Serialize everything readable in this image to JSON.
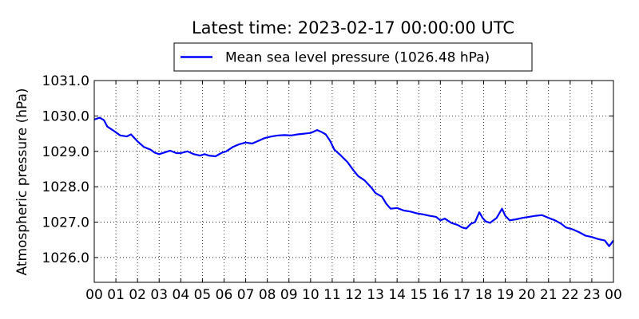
{
  "chart_data": {
    "type": "line",
    "title": "Latest time: 2023-02-17 00:00:00 UTC",
    "xlabel": "",
    "ylabel": "Atmospheric pressure (hPa)",
    "x_unit": "hour",
    "xlim": [
      0,
      24
    ],
    "ylim": [
      1025.3,
      1031.0
    ],
    "grid": true,
    "legend_position": "top-center",
    "x_tick_labels": [
      "00",
      "01",
      "02",
      "03",
      "04",
      "05",
      "06",
      "07",
      "08",
      "09",
      "10",
      "11",
      "12",
      "13",
      "14",
      "15",
      "16",
      "17",
      "18",
      "19",
      "20",
      "21",
      "22",
      "23",
      "00"
    ],
    "y_ticks": [
      1026.0,
      1027.0,
      1028.0,
      1029.0,
      1030.0,
      1031.0
    ],
    "y_tick_labels": [
      "1026.0",
      "1027.0",
      "1028.0",
      "1029.0",
      "1030.0",
      "1031.0"
    ],
    "series": [
      {
        "name": "Mean sea level pressure (1026.48 hPa)",
        "color": "#0000ff",
        "points": [
          [
            0.0,
            1029.9
          ],
          [
            0.25,
            1029.95
          ],
          [
            0.45,
            1029.88
          ],
          [
            0.6,
            1029.7
          ],
          [
            0.9,
            1029.58
          ],
          [
            1.2,
            1029.45
          ],
          [
            1.5,
            1029.42
          ],
          [
            1.7,
            1029.48
          ],
          [
            2.0,
            1029.28
          ],
          [
            2.3,
            1029.12
          ],
          [
            2.6,
            1029.05
          ],
          [
            2.8,
            1028.96
          ],
          [
            3.0,
            1028.92
          ],
          [
            3.3,
            1028.98
          ],
          [
            3.5,
            1029.02
          ],
          [
            3.8,
            1028.95
          ],
          [
            4.0,
            1028.95
          ],
          [
            4.3,
            1029.0
          ],
          [
            4.6,
            1028.92
          ],
          [
            4.9,
            1028.88
          ],
          [
            5.1,
            1028.92
          ],
          [
            5.3,
            1028.88
          ],
          [
            5.6,
            1028.86
          ],
          [
            5.9,
            1028.96
          ],
          [
            6.1,
            1029.0
          ],
          [
            6.4,
            1029.12
          ],
          [
            6.7,
            1029.2
          ],
          [
            7.0,
            1029.25
          ],
          [
            7.3,
            1029.22
          ],
          [
            7.6,
            1029.3
          ],
          [
            7.9,
            1029.38
          ],
          [
            8.2,
            1029.42
          ],
          [
            8.5,
            1029.45
          ],
          [
            8.8,
            1029.46
          ],
          [
            9.1,
            1029.45
          ],
          [
            9.4,
            1029.48
          ],
          [
            9.7,
            1029.5
          ],
          [
            10.0,
            1029.52
          ],
          [
            10.3,
            1029.6
          ],
          [
            10.5,
            1029.55
          ],
          [
            10.7,
            1029.48
          ],
          [
            10.9,
            1029.3
          ],
          [
            11.1,
            1029.05
          ],
          [
            11.4,
            1028.88
          ],
          [
            11.7,
            1028.7
          ],
          [
            12.0,
            1028.45
          ],
          [
            12.2,
            1028.3
          ],
          [
            12.5,
            1028.18
          ],
          [
            12.8,
            1027.98
          ],
          [
            13.0,
            1027.82
          ],
          [
            13.3,
            1027.72
          ],
          [
            13.5,
            1027.52
          ],
          [
            13.7,
            1027.38
          ],
          [
            14.0,
            1027.4
          ],
          [
            14.3,
            1027.33
          ],
          [
            14.6,
            1027.3
          ],
          [
            14.9,
            1027.25
          ],
          [
            15.2,
            1027.22
          ],
          [
            15.5,
            1027.18
          ],
          [
            15.8,
            1027.15
          ],
          [
            16.0,
            1027.05
          ],
          [
            16.2,
            1027.1
          ],
          [
            16.5,
            1026.98
          ],
          [
            16.8,
            1026.92
          ],
          [
            17.0,
            1026.85
          ],
          [
            17.2,
            1026.82
          ],
          [
            17.4,
            1026.95
          ],
          [
            17.6,
            1027.0
          ],
          [
            17.8,
            1027.28
          ],
          [
            17.95,
            1027.12
          ],
          [
            18.1,
            1027.02
          ],
          [
            18.3,
            1026.98
          ],
          [
            18.6,
            1027.12
          ],
          [
            18.85,
            1027.38
          ],
          [
            19.0,
            1027.18
          ],
          [
            19.2,
            1027.05
          ],
          [
            19.5,
            1027.08
          ],
          [
            19.8,
            1027.12
          ],
          [
            20.1,
            1027.15
          ],
          [
            20.4,
            1027.18
          ],
          [
            20.7,
            1027.2
          ],
          [
            21.0,
            1027.12
          ],
          [
            21.3,
            1027.05
          ],
          [
            21.6,
            1026.95
          ],
          [
            21.8,
            1026.85
          ],
          [
            22.1,
            1026.8
          ],
          [
            22.4,
            1026.72
          ],
          [
            22.7,
            1026.62
          ],
          [
            23.0,
            1026.58
          ],
          [
            23.3,
            1026.52
          ],
          [
            23.6,
            1026.48
          ],
          [
            23.8,
            1026.32
          ],
          [
            24.0,
            1026.48
          ]
        ]
      }
    ]
  }
}
